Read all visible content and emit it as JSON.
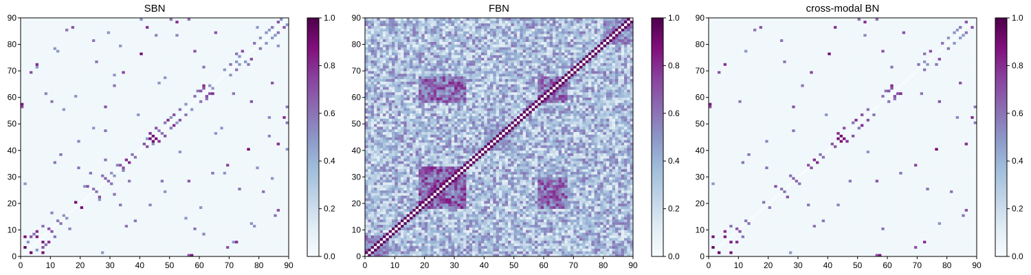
{
  "chart_data": [
    {
      "type": "heatmap",
      "title": "SBN",
      "colormap": "BuPu",
      "xlim": [
        0,
        90
      ],
      "ylim": [
        0,
        90
      ],
      "xticks": [
        "0",
        "10",
        "20",
        "30",
        "40",
        "50",
        "60",
        "70",
        "80",
        "90"
      ],
      "yticks": [
        "0",
        "10",
        "20",
        "30",
        "40",
        "50",
        "60",
        "70",
        "80",
        "90"
      ],
      "colorbar": {
        "min": 0.0,
        "max": 1.0,
        "ticks": [
          "0.0",
          "0.2",
          "0.4",
          "0.6",
          "0.8",
          "1.0"
        ]
      },
      "grid": "90x90",
      "diagonal_value": 0.0,
      "background_value": 0.03,
      "cells": [
        [
          7,
          1,
          0.9
        ],
        [
          7,
          3,
          0.7
        ],
        [
          9,
          5,
          0.8
        ],
        [
          5,
          7,
          0.85
        ],
        [
          4,
          8,
          0.6
        ],
        [
          10,
          9,
          0.7
        ],
        [
          13,
          12,
          0.6
        ],
        [
          15,
          14,
          0.5
        ],
        [
          3,
          1,
          0.95
        ],
        [
          11,
          7,
          0.6
        ],
        [
          2,
          5,
          0.5
        ],
        [
          16,
          10,
          0.55
        ],
        [
          18,
          20,
          0.6
        ],
        [
          20,
          18,
          0.9
        ],
        [
          23,
          23,
          0.7
        ],
        [
          24,
          25,
          0.6
        ],
        [
          26,
          22,
          0.7
        ],
        [
          27,
          30,
          0.6
        ],
        [
          21,
          26,
          0.5
        ],
        [
          23,
          31,
          0.6
        ],
        [
          29,
          28,
          0.65
        ],
        [
          31,
          30,
          0.5
        ],
        [
          33,
          34,
          0.7
        ],
        [
          35,
          36,
          0.8
        ],
        [
          37,
          38,
          0.6
        ],
        [
          34,
          32,
          0.55
        ],
        [
          41,
          42,
          0.7
        ],
        [
          43,
          44,
          0.9
        ],
        [
          44,
          45,
          0.95
        ],
        [
          45,
          44,
          0.9
        ],
        [
          46,
          43,
          0.8
        ],
        [
          47,
          46,
          0.6
        ],
        [
          42,
          44,
          0.5
        ],
        [
          45,
          48,
          0.7
        ],
        [
          48,
          50,
          0.6
        ],
        [
          49,
          51,
          0.8
        ],
        [
          51,
          53,
          0.7
        ],
        [
          53,
          55,
          0.6
        ],
        [
          52,
          50,
          0.5
        ],
        [
          55,
          57,
          0.5
        ],
        [
          58,
          60,
          0.6
        ],
        [
          60,
          62,
          0.7
        ],
        [
          61,
          64,
          0.8
        ],
        [
          63,
          61,
          0.7
        ],
        [
          62,
          59,
          0.6
        ],
        [
          64,
          63,
          0.5
        ],
        [
          66,
          66,
          0.6
        ],
        [
          68,
          70,
          0.5
        ],
        [
          70,
          72,
          0.6
        ],
        [
          72,
          73,
          0.5
        ],
        [
          74,
          77,
          0.7
        ],
        [
          76,
          72,
          0.6
        ],
        [
          73,
          75,
          0.5
        ],
        [
          78,
          80,
          0.6
        ],
        [
          80,
          82,
          0.5
        ],
        [
          82,
          84,
          0.5
        ],
        [
          84,
          86,
          0.6
        ],
        [
          86,
          88,
          0.7
        ],
        [
          85,
          83,
          0.5
        ],
        [
          87,
          89,
          0.5
        ],
        [
          88,
          52,
          0.8
        ],
        [
          89,
          56,
          0.6
        ],
        [
          3,
          69,
          0.7
        ],
        [
          5,
          71,
          0.5
        ],
        [
          8,
          61,
          0.55
        ],
        [
          12,
          77,
          0.5
        ],
        [
          17,
          86,
          0.7
        ],
        [
          25,
          73,
          0.6
        ],
        [
          31,
          68,
          0.5
        ],
        [
          36,
          28,
          0.6
        ],
        [
          42,
          86,
          0.8
        ],
        [
          45,
          83,
          0.55
        ],
        [
          56,
          28,
          0.7
        ],
        [
          60,
          18,
          0.5
        ],
        [
          64,
          31,
          0.6
        ],
        [
          69,
          34,
          0.75
        ],
        [
          72,
          5,
          0.8
        ],
        [
          76,
          40,
          0.9
        ],
        [
          78,
          11,
          0.5
        ],
        [
          81,
          24,
          0.6
        ],
        [
          84,
          65,
          0.7
        ],
        [
          86,
          79,
          0.5
        ],
        [
          11,
          35,
          0.6
        ],
        [
          14,
          55,
          0.5
        ],
        [
          19,
          43,
          0.55
        ],
        [
          28,
          47,
          0.6
        ],
        [
          38,
          13,
          0.6
        ],
        [
          48,
          24,
          0.5
        ],
        [
          53,
          39,
          0.5
        ],
        [
          58,
          10,
          0.6
        ],
        [
          67,
          48,
          0.5
        ],
        [
          71,
          61,
          0.6
        ],
        [
          77,
          58,
          0.7
        ],
        [
          83,
          52,
          0.55
        ],
        [
          29,
          84,
          0.5
        ],
        [
          33,
          19,
          0.6
        ],
        [
          0,
          56,
          0.7
        ],
        [
          1,
          27,
          0.5
        ],
        [
          50,
          89,
          0.6
        ],
        [
          57,
          0,
          0.85
        ],
        [
          65,
          46,
          0.5
        ],
        [
          79,
          33,
          0.5
        ],
        [
          85,
          15,
          0.6
        ],
        [
          89,
          40,
          0.5
        ]
      ]
    },
    {
      "type": "heatmap",
      "title": "FBN",
      "colormap": "BuPu",
      "xlim": [
        0,
        90
      ],
      "ylim": [
        0,
        90
      ],
      "xticks": [
        "0",
        "10",
        "20",
        "30",
        "40",
        "50",
        "60",
        "70",
        "80",
        "90"
      ],
      "yticks": [
        "0",
        "10",
        "20",
        "30",
        "40",
        "50",
        "60",
        "70",
        "80",
        "90"
      ],
      "colorbar": {
        "min": 0.0,
        "max": 1.0,
        "ticks": [
          "0.0",
          "0.2",
          "0.4",
          "0.6",
          "0.8",
          "1.0"
        ]
      },
      "grid": "90x90",
      "diagonal_value": 0.0,
      "near_diagonal_value": 0.95,
      "background_value": 0.3,
      "blocks": [
        {
          "x": [
            18,
            34
          ],
          "y": [
            18,
            34
          ],
          "value": 0.75
        },
        {
          "x": [
            58,
            68
          ],
          "y": [
            18,
            30
          ],
          "value": 0.72
        },
        {
          "x": [
            18,
            34
          ],
          "y": [
            58,
            68
          ],
          "value": 0.72
        },
        {
          "x": [
            58,
            68
          ],
          "y": [
            58,
            68
          ],
          "value": 0.7
        },
        {
          "x": [
            0,
            8
          ],
          "y": [
            0,
            8
          ],
          "value": 0.6
        },
        {
          "x": [
            80,
            90
          ],
          "y": [
            80,
            90
          ],
          "value": 0.6
        },
        {
          "x": [
            40,
            50
          ],
          "y": [
            40,
            50
          ],
          "value": 0.55
        }
      ]
    },
    {
      "type": "heatmap",
      "title": "cross-modal BN",
      "colormap": "BuPu",
      "xlim": [
        0,
        90
      ],
      "ylim": [
        0,
        90
      ],
      "xticks": [
        "0",
        "10",
        "20",
        "30",
        "40",
        "50",
        "60",
        "70",
        "80",
        "90"
      ],
      "yticks": [
        "0",
        "10",
        "20",
        "30",
        "40",
        "50",
        "60",
        "70",
        "80",
        "90"
      ],
      "colorbar": {
        "min": 0.0,
        "max": 1.0,
        "ticks": [
          "0.0",
          "0.2",
          "0.4",
          "0.6",
          "0.8",
          "1.0"
        ]
      },
      "grid": "90x90",
      "diagonal_value": 0.0,
      "background_value": 0.03,
      "cells": [
        [
          7,
          1,
          0.9
        ],
        [
          9,
          5,
          0.8
        ],
        [
          5,
          7,
          0.85
        ],
        [
          10,
          9,
          0.7
        ],
        [
          3,
          1,
          0.95
        ],
        [
          11,
          7,
          0.6
        ],
        [
          20,
          18,
          0.9
        ],
        [
          23,
          23,
          0.7
        ],
        [
          26,
          22,
          0.7
        ],
        [
          27,
          30,
          0.6
        ],
        [
          29,
          28,
          0.65
        ],
        [
          33,
          34,
          0.7
        ],
        [
          35,
          36,
          0.8
        ],
        [
          43,
          44,
          0.9
        ],
        [
          44,
          45,
          0.95
        ],
        [
          45,
          44,
          0.9
        ],
        [
          46,
          43,
          0.8
        ],
        [
          45,
          48,
          0.7
        ],
        [
          49,
          51,
          0.8
        ],
        [
          51,
          53,
          0.7
        ],
        [
          60,
          62,
          0.7
        ],
        [
          61,
          64,
          0.8
        ],
        [
          63,
          61,
          0.7
        ],
        [
          74,
          77,
          0.7
        ],
        [
          76,
          72,
          0.6
        ],
        [
          84,
          86,
          0.6
        ],
        [
          86,
          88,
          0.7
        ],
        [
          88,
          52,
          0.8
        ],
        [
          3,
          69,
          0.7
        ],
        [
          17,
          86,
          0.7
        ],
        [
          42,
          86,
          0.8
        ],
        [
          56,
          28,
          0.7
        ],
        [
          69,
          34,
          0.75
        ],
        [
          72,
          5,
          0.8
        ],
        [
          76,
          40,
          0.9
        ],
        [
          84,
          65,
          0.7
        ],
        [
          57,
          0,
          0.85
        ],
        [
          78,
          80,
          0.6
        ],
        [
          80,
          82,
          0.5
        ],
        [
          70,
          72,
          0.6
        ],
        [
          24,
          25,
          0.6
        ],
        [
          18,
          20,
          0.6
        ],
        [
          13,
          12,
          0.6
        ],
        [
          37,
          38,
          0.6
        ],
        [
          41,
          42,
          0.7
        ],
        [
          48,
          50,
          0.6
        ],
        [
          53,
          55,
          0.6
        ],
        [
          58,
          60,
          0.6
        ],
        [
          62,
          59,
          0.6
        ],
        [
          66,
          66,
          0.6
        ],
        [
          72,
          73,
          0.5
        ],
        [
          82,
          84,
          0.5
        ],
        [
          85,
          83,
          0.5
        ],
        [
          89,
          56,
          0.6
        ],
        [
          12,
          77,
          0.5
        ],
        [
          25,
          73,
          0.6
        ],
        [
          11,
          35,
          0.6
        ],
        [
          33,
          19,
          0.6
        ],
        [
          50,
          89,
          0.6
        ],
        [
          85,
          15,
          0.6
        ],
        [
          1,
          27,
          0.5
        ],
        [
          0,
          56,
          0.7
        ],
        [
          64,
          31,
          0.6
        ],
        [
          81,
          24,
          0.6
        ],
        [
          38,
          13,
          0.6
        ],
        [
          58,
          10,
          0.6
        ],
        [
          77,
          58,
          0.7
        ],
        [
          71,
          61,
          0.6
        ],
        [
          28,
          47,
          0.6
        ],
        [
          19,
          43,
          0.55
        ],
        [
          53,
          39,
          0.5
        ],
        [
          83,
          52,
          0.55
        ]
      ]
    }
  ]
}
